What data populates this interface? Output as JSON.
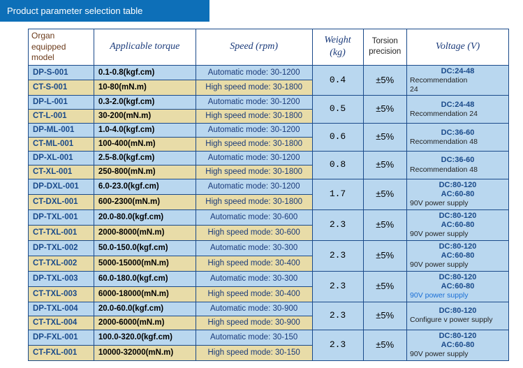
{
  "page_title": "Product parameter selection table",
  "headers": {
    "model": "Organ equipped model",
    "torque": "Applicable torque",
    "speed": "Speed (rpm)",
    "weight": "Weight (kg)",
    "torsion": "Torsion precision",
    "voltage": "Voltage (V)"
  },
  "rows": [
    {
      "model_top": "DP-S-001",
      "model_bot": "CT-S-001",
      "torque_top": "0.1-0.8(kgf.cm)",
      "torque_bot": "10-80(mN.m)",
      "speed_top": "Automatic mode: 30-1200",
      "speed_bot": "High speed mode: 30-1800",
      "weight": "0.4",
      "torsion": "±5%",
      "v_dc": "DC:24-48",
      "v_ac": "",
      "v_note1": "Recommendation",
      "v_note2": "24",
      "note_class": "note"
    },
    {
      "model_top": "DP-L-001",
      "model_bot": "CT-L-001",
      "torque_top": "0.3-2.0(kgf.cm)",
      "torque_bot": "30-200(mN.m)",
      "speed_top": "Automatic mode: 30-1200",
      "speed_bot": "High speed mode: 30-1800",
      "weight": "0.5",
      "torsion": "±5%",
      "v_dc": "DC:24-48",
      "v_ac": "",
      "v_note1": "Recommendation 24",
      "v_note2": "",
      "note_class": "note"
    },
    {
      "model_top": "DP-ML-001",
      "model_bot": "CT-ML-001",
      "torque_top": "1.0-4.0(kgf.cm)",
      "torque_bot": "100-400(mN.m)",
      "speed_top": "Automatic mode: 30-1200",
      "speed_bot": "High speed mode: 30-1800",
      "weight": "0.6",
      "torsion": "±5%",
      "v_dc": "DC:36-60",
      "v_ac": "",
      "v_note1": "Recommendation 48",
      "v_note2": "",
      "note_class": "note"
    },
    {
      "model_top": "DP-XL-001",
      "model_bot": "CT-XL-001",
      "torque_top": "2.5-8.0(kgf.cm)",
      "torque_bot": "250-800(mN.m)",
      "speed_top": "Automatic mode: 30-1200",
      "speed_bot": "High speed mode: 30-1800",
      "weight": "0.8",
      "torsion": "±5%",
      "v_dc": "DC:36-60",
      "v_ac": "",
      "v_note1": "Recommendation 48",
      "v_note2": "",
      "note_class": "note"
    },
    {
      "model_top": "DP-DXL-001",
      "model_bot": "CT-DXL-001",
      "torque_top": "6.0-23.0(kgf.cm)",
      "torque_bot": "600-2300(mN.m)",
      "speed_top": "Automatic mode: 30-1200",
      "speed_bot": "High speed mode: 30-1800",
      "weight": "1.7",
      "torsion": "±5%",
      "v_dc": "DC:80-120",
      "v_ac": "AC:60-80",
      "v_note1": "90V power supply",
      "v_note2": "",
      "note_class": "note"
    },
    {
      "model_top": "DP-TXL-001",
      "model_bot": "CT-TXL-001",
      "torque_top": "20.0-80.0(kgf.cm)",
      "torque_bot": "2000-8000(mN.m)",
      "speed_top": "Automatic mode: 30-600",
      "speed_bot": "High speed mode: 30-600",
      "weight": "2.3",
      "torsion": "±5%",
      "v_dc": "DC:80-120",
      "v_ac": "AC:60-80",
      "v_note1": "90V power supply",
      "v_note2": "",
      "note_class": "note"
    },
    {
      "model_top": "DP-TXL-002",
      "model_bot": "CT-TXL-002",
      "torque_top": "50.0-150.0(kgf.cm)",
      "torque_bot": "5000-15000(mN.m)",
      "speed_top": "Automatic mode: 30-300",
      "speed_bot": "High speed mode: 30-400",
      "weight": "2.3",
      "torsion": "±5%",
      "v_dc": "DC:80-120",
      "v_ac": "AC:60-80",
      "v_note1": "90V power supply",
      "v_note2": "",
      "note_class": "note"
    },
    {
      "model_top": "DP-TXL-003",
      "model_bot": "CT-TXL-003",
      "torque_top": "60.0-180.0(kgf.cm)",
      "torque_bot": "6000-18000(mN.m)",
      "speed_top": "Automatic mode: 30-300",
      "speed_bot": "High speed mode: 30-400",
      "weight": "2.3",
      "torsion": "±5%",
      "v_dc": "DC:80-120",
      "v_ac": "AC:60-80",
      "v_note1": "90V power supply",
      "v_note2": "",
      "note_class": "note-blue"
    },
    {
      "model_top": "DP-TXL-004",
      "model_bot": "CT-TXL-004",
      "torque_top": "20.0-60.0(kgf.cm)",
      "torque_bot": "2000-6000(mN.m)",
      "speed_top": "Automatic mode: 30-900",
      "speed_bot": "High speed mode: 30-900",
      "weight": "2.3",
      "torsion": "±5%",
      "v_dc": "DC:80-120",
      "v_ac": "",
      "v_note1": "Configure v power supply",
      "v_note2": "",
      "note_class": "note"
    },
    {
      "model_top": "DP-FXL-001",
      "model_bot": "CT-FXL-001",
      "torque_top": "100.0-320.0(kgf.cm)",
      "torque_bot": "10000-32000(mN.m)",
      "speed_top": "Automatic mode: 30-150",
      "speed_bot": "High speed mode: 30-150",
      "weight": "2.3",
      "torsion": "±5%",
      "v_dc": "DC:80-120",
      "v_ac": "AC:60-80",
      "v_note1": "90V power supply",
      "v_note2": "",
      "note_class": "note"
    }
  ]
}
